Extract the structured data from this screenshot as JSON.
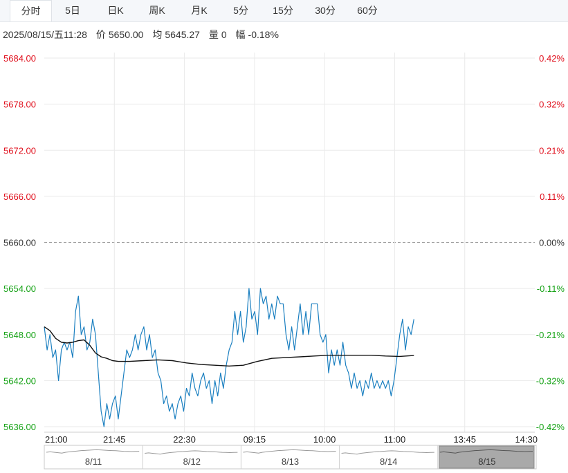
{
  "tabs": [
    {
      "label": "分时",
      "active": true
    },
    {
      "label": "5日",
      "active": false
    },
    {
      "label": "日K",
      "active": false
    },
    {
      "label": "周K",
      "active": false
    },
    {
      "label": "月K",
      "active": false
    },
    {
      "label": "5分",
      "active": false
    },
    {
      "label": "15分",
      "active": false
    },
    {
      "label": "30分",
      "active": false
    },
    {
      "label": "60分",
      "active": false
    }
  ],
  "info": {
    "datetime": "2025/08/15/五11:28",
    "price_label": "价",
    "price": "5650.00",
    "avg_label": "均",
    "avg": "5645.27",
    "volume_label": "量",
    "volume": "0",
    "change_label": "幅",
    "change": "-0.18%"
  },
  "colors": {
    "up": "#e0101d",
    "down": "#15a215",
    "neutral": "#333333",
    "price_line": "#1a7fc0",
    "avg_line": "#111111",
    "grid": "#eaeaea",
    "navigator_shade": "#a9a9a9"
  },
  "chart_data": {
    "type": "line",
    "prev_close": 5660,
    "ylim": [
      5636,
      5684
    ],
    "y_ticks": [
      "5684.00",
      "5678.00",
      "5672.00",
      "5666.00",
      "5660.00",
      "5654.00",
      "5648.00",
      "5642.00",
      "5636.00"
    ],
    "y_pct_ticks": [
      "0.42%",
      "0.32%",
      "0.21%",
      "0.11%",
      "0.00%",
      "-0.11%",
      "-0.21%",
      "-0.32%",
      "-0.42%"
    ],
    "x_ticks": [
      "21:00",
      "21:45",
      "22:30",
      "09:15",
      "10:00",
      "11:00",
      "13:45",
      "14:30"
    ],
    "total_slots": 345,
    "series": [
      {
        "key": "price",
        "x": [
          0,
          2,
          4,
          6,
          8,
          10,
          12,
          14,
          16,
          18,
          20,
          22,
          24,
          26,
          28,
          30,
          32,
          34,
          36,
          38,
          40,
          42,
          44,
          46,
          48,
          50,
          52,
          54,
          56,
          58,
          60,
          62,
          64,
          66,
          68,
          70,
          72,
          74,
          76,
          78,
          80,
          82,
          84,
          86,
          88,
          90,
          92,
          94,
          96,
          98,
          100,
          102,
          104,
          106,
          108,
          110,
          112,
          114,
          116,
          118,
          120,
          122,
          124,
          126,
          128,
          130,
          132,
          134,
          136,
          138,
          140,
          142,
          144,
          146,
          148,
          150,
          152,
          154,
          156,
          158,
          160,
          162,
          164,
          166,
          168,
          170,
          172,
          174,
          176,
          178,
          180,
          182,
          184,
          186,
          188,
          190,
          192,
          194,
          196,
          198,
          200,
          202,
          204,
          206,
          208,
          210,
          212,
          214,
          216,
          218,
          220,
          222,
          224,
          226,
          228,
          230,
          232,
          234,
          236,
          238,
          240,
          242,
          244,
          246,
          248,
          250,
          252,
          254,
          256,
          258,
          260
        ],
        "values": [
          5649,
          5646,
          5648,
          5645,
          5646,
          5642,
          5646,
          5647,
          5646,
          5647,
          5645,
          5651,
          5653,
          5648,
          5649,
          5646,
          5647,
          5650,
          5648,
          5643,
          5638,
          5636,
          5639,
          5637,
          5639,
          5640,
          5637,
          5640,
          5643,
          5646,
          5645,
          5646,
          5648,
          5646,
          5648,
          5649,
          5646,
          5648,
          5645,
          5646,
          5643,
          5642,
          5639,
          5640,
          5638,
          5639,
          5637,
          5639,
          5640,
          5638,
          5641,
          5640,
          5643,
          5641,
          5640,
          5642,
          5643,
          5641,
          5642,
          5639,
          5642,
          5640,
          5643,
          5641,
          5644,
          5646,
          5647,
          5651,
          5648,
          5651,
          5647,
          5649,
          5654,
          5650,
          5651,
          5648,
          5654,
          5652,
          5653,
          5650,
          5652,
          5650,
          5653,
          5652,
          5652,
          5648,
          5646,
          5649,
          5646,
          5649,
          5652,
          5648,
          5651,
          5648,
          5652,
          5652,
          5652,
          5648,
          5647,
          5648,
          5643,
          5646,
          5644,
          5646,
          5644,
          5647,
          5644,
          5643,
          5641,
          5643,
          5641,
          5642,
          5640,
          5642,
          5641,
          5643,
          5641,
          5642,
          5641,
          5642,
          5641,
          5642,
          5640,
          5642,
          5645,
          5648,
          5650,
          5646,
          5649,
          5648,
          5650
        ]
      },
      {
        "key": "average",
        "x": [
          0,
          4,
          8,
          12,
          16,
          20,
          24,
          28,
          32,
          36,
          40,
          44,
          48,
          52,
          60,
          70,
          80,
          90,
          100,
          110,
          120,
          130,
          140,
          150,
          160,
          170,
          180,
          190,
          200,
          210,
          220,
          230,
          240,
          250,
          260
        ],
        "values": [
          5649,
          5648.5,
          5647.5,
          5647,
          5646.9,
          5647,
          5647.2,
          5647.3,
          5646.6,
          5645.6,
          5645.1,
          5644.9,
          5644.6,
          5644.5,
          5644.5,
          5644.6,
          5644.7,
          5644.6,
          5644.3,
          5644.1,
          5644.0,
          5643.9,
          5644.0,
          5644.5,
          5644.9,
          5645.0,
          5645.1,
          5645.2,
          5645.3,
          5645.3,
          5645.3,
          5645.3,
          5645.2,
          5645.15,
          5645.27
        ]
      }
    ]
  },
  "navigator": {
    "days": [
      "8/11",
      "8/12",
      "8/13",
      "8/14",
      "8/15"
    ],
    "selected": "8/15"
  }
}
